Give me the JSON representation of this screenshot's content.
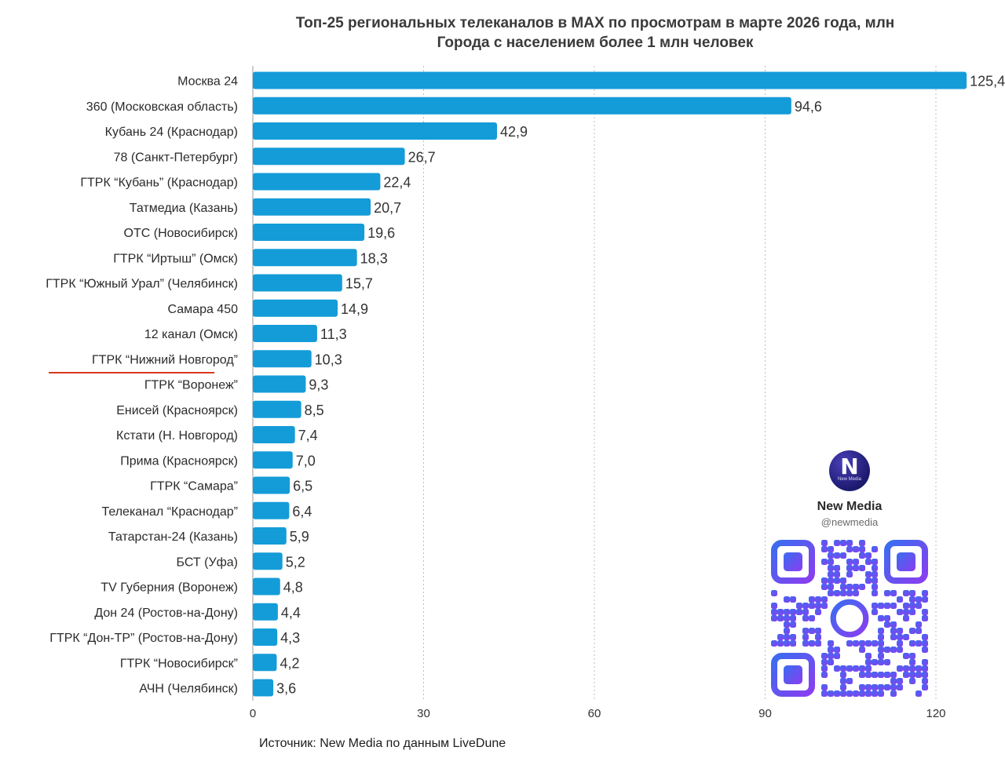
{
  "chart_data": {
    "type": "bar",
    "orientation": "horizontal",
    "title": "Топ-25 региональных телеканалов в MAX по просмотрам в марте 2026 года, млн",
    "subtitle": "Города с населением более 1 млн человек",
    "categories": [
      "Москва 24",
      "360 (Московская область)",
      "Кубань 24 (Краснодар)",
      "78 (Санкт-Петербург)",
      "ГТРК “Кубань” (Краснодар)",
      "Татмедиа (Казань)",
      "ОТС (Новосибирск)",
      "ГТРК “Иртыш” (Омск)",
      "ГТРК “Южный Урал” (Челябинск)",
      "Самара 450",
      "12 канал (Омск)",
      "ГТРК “Нижний Новгород”",
      "ГТРК “Воронеж”",
      "Енисей (Красноярск)",
      "Кстати (Н. Новгород)",
      "Прима (Красноярск)",
      "ГТРК “Самара”",
      "Телеканал “Краснодар”",
      "Татарстан-24 (Казань)",
      "БСТ (Уфа)",
      "TV Губерния (Воронеж)",
      "Дон 24 (Ростов-на-Дону)",
      "ГТРК “Дон-ТР” (Ростов-на-Дону)",
      "ГТРК “Новосибирск”",
      "АЧН (Челябинск)"
    ],
    "values": [
      125.4,
      94.6,
      42.9,
      26.7,
      22.4,
      20.7,
      19.6,
      18.3,
      15.7,
      14.9,
      11.3,
      10.3,
      9.3,
      8.5,
      7.4,
      7.0,
      6.5,
      6.4,
      5.9,
      5.2,
      4.8,
      4.4,
      4.3,
      4.2,
      3.6
    ],
    "value_labels": [
      "125,4",
      "94,6",
      "42,9",
      "26,7",
      "22,4",
      "20,7",
      "19,6",
      "18,3",
      "15,7",
      "14,9",
      "11,3",
      "10,3",
      "9,3",
      "8,5",
      "7,4",
      "7,0",
      "6,5",
      "6,4",
      "5,9",
      "5,2",
      "4,8",
      "4,4",
      "4,3",
      "4,2",
      "3,6"
    ],
    "xlim": [
      0,
      120
    ],
    "xticks": [
      0,
      30,
      60,
      90,
      120
    ],
    "xtick_labels": [
      "0",
      "30",
      "60",
      "90",
      "120"
    ],
    "grid": true,
    "bar_color": "#149cd8",
    "highlighted_category": "ГТРК “Нижний Новгород”",
    "highlight_color": "#d9391f"
  },
  "source": "Источник: New Media по данным LiveDune",
  "brand": {
    "logo_letter": "N",
    "logo_caption": "New Media",
    "name": "New Media",
    "handle": "@newmedia"
  },
  "qr_code": {
    "icon": "qr-code-icon",
    "colors": [
      "#3a6df0",
      "#8a3df0"
    ]
  }
}
